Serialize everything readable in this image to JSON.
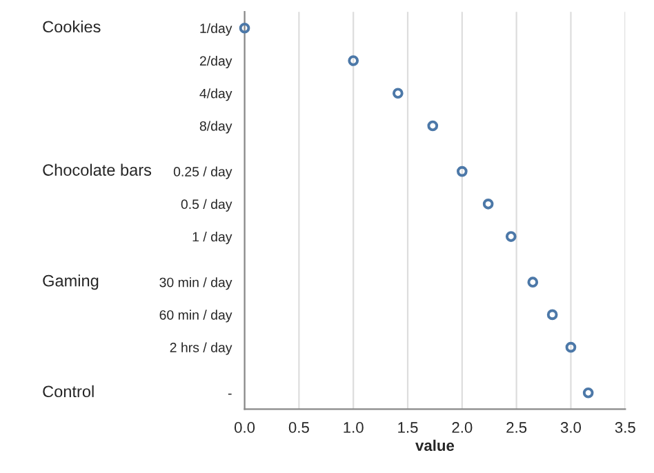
{
  "chart_data": {
    "type": "scatter",
    "orientation": "horizontal",
    "xlabel": "value",
    "categories": [
      "1/day",
      "2/day",
      "4/day",
      "8/day",
      "0.25 / day",
      "0.5 / day",
      "1 / day",
      "30 min / day",
      "60 min / day",
      "2 hrs / day",
      "-"
    ],
    "series": [
      {
        "color": "#4c78a8",
        "values": [
          0,
          1.0,
          1.41,
          1.73,
          2.0,
          2.24,
          2.45,
          2.65,
          2.83,
          3.0,
          3.16
        ]
      }
    ],
    "xlim": [
      0,
      3.5
    ],
    "xticks": [
      {
        "value": 0,
        "label": "0.0"
      },
      {
        "value": 0.5,
        "label": "0.5"
      },
      {
        "value": 1,
        "label": "1.0"
      },
      {
        "value": 1.5,
        "label": "1.5"
      },
      {
        "value": 2,
        "label": "2.0"
      },
      {
        "value": 2.5,
        "label": "2.5"
      },
      {
        "value": 3,
        "label": "3.0"
      },
      {
        "value": 3.5,
        "label": "3.5"
      }
    ],
    "annotations": [
      "Cookies",
      "Chocolate bars",
      "Gaming",
      "Control"
    ],
    "grid": "x",
    "marker": "circle",
    "legend": false
  }
}
